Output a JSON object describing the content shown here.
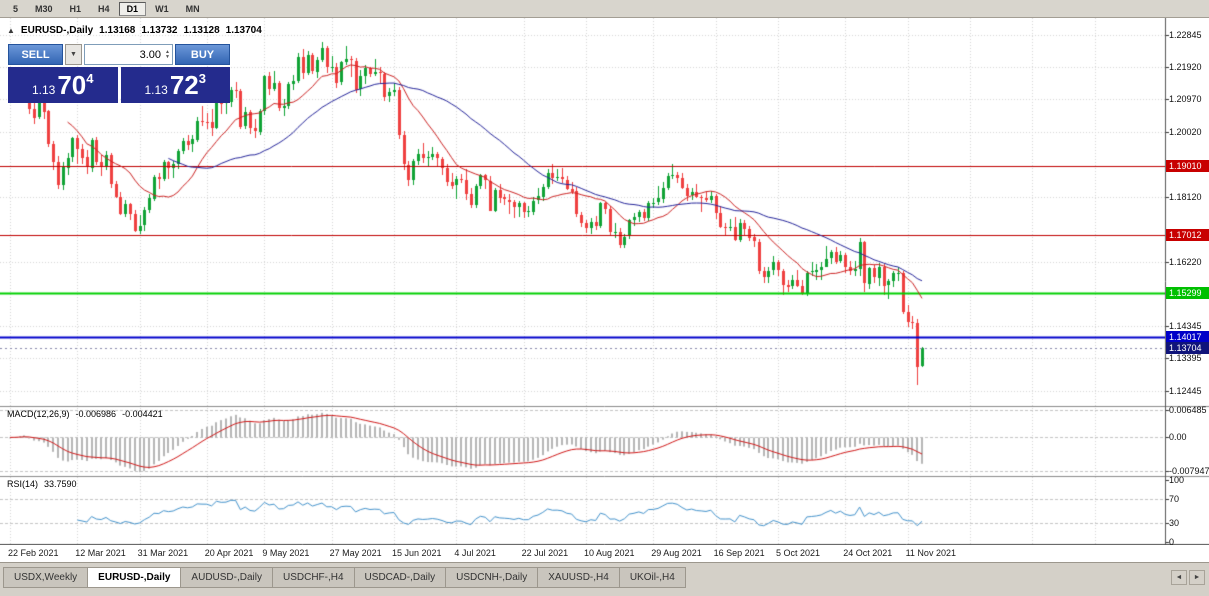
{
  "toolbar": {
    "timeframes": [
      "5",
      "M30",
      "H1",
      "H4",
      "D1",
      "W1",
      "MN"
    ],
    "active": "D1"
  },
  "chart": {
    "symbol": "EURUSD-,Daily",
    "open": "1.13168",
    "high": "1.13732",
    "low": "1.13128",
    "close": "1.13704"
  },
  "trade_panel": {
    "sell_label": "SELL",
    "buy_label": "BUY",
    "lot": "3.00",
    "bid": {
      "prefix": "1.13",
      "pips": "70",
      "frac": "4"
    },
    "ask": {
      "prefix": "1.13",
      "pips": "72",
      "frac": "3"
    }
  },
  "price_axis": {
    "plain_labels": [
      "1.22845",
      "1.21920",
      "1.20970",
      "1.20020",
      "1.18120",
      "1.16220",
      "1.14345",
      "1.13395",
      "1.12445"
    ],
    "tags": [
      {
        "text": "1.19010",
        "bg": "#c80000",
        "current": false
      },
      {
        "text": "1.17012",
        "bg": "#c80000",
        "current": false
      },
      {
        "text": "1.15299",
        "bg": "#00c000",
        "current": false
      },
      {
        "text": "1.14017",
        "bg": "#0000c8",
        "current": false
      },
      {
        "text": "1.13704",
        "bg": "#10147a",
        "current": true
      }
    ]
  },
  "hlines": [
    {
      "price": 1.1901,
      "color": "#c00000",
      "width": 1
    },
    {
      "price": 1.17012,
      "color": "#c00000",
      "width": 1
    },
    {
      "price": 1.15299,
      "color": "#00d000",
      "width": 2
    },
    {
      "price": 1.14017,
      "color": "#0000cc",
      "width": 2
    }
  ],
  "current_price": 1.13704,
  "date_axis": [
    {
      "label": "22 Feb 2021",
      "i": 0
    },
    {
      "label": "12 Mar 2021",
      "i": 14
    },
    {
      "label": "31 Mar 2021",
      "i": 27
    },
    {
      "label": "20 Apr 2021",
      "i": 41
    },
    {
      "label": "9 May 2021",
      "i": 53
    },
    {
      "label": "27 May 2021",
      "i": 67
    },
    {
      "label": "15 Jun 2021",
      "i": 80
    },
    {
      "label": "4 Jul 2021",
      "i": 93
    },
    {
      "label": "22 Jul 2021",
      "i": 107
    },
    {
      "label": "10 Aug 2021",
      "i": 120
    },
    {
      "label": "29 Aug 2021",
      "i": 134
    },
    {
      "label": "16 Sep 2021",
      "i": 147
    },
    {
      "label": "5 Oct 2021",
      "i": 160
    },
    {
      "label": "24 Oct 2021",
      "i": 174
    },
    {
      "label": "11 Nov 2021",
      "i": 187
    }
  ],
  "macd": {
    "name": "MACD(12,26,9)",
    "value_main": "-0.006986",
    "value_signal": "-0.004421",
    "axis_labels": [
      {
        "text": "0.006485",
        "v": 0.006485
      },
      {
        "text": "0.00",
        "v": 0
      },
      {
        "text": "-0.007947",
        "v": -0.007947
      }
    ],
    "colors": {
      "histogram": "#b6b6b6",
      "signal": "#d01616"
    }
  },
  "rsi": {
    "name": "RSI(14)",
    "value": "33.7590",
    "levels": [
      100,
      70,
      30,
      0
    ],
    "dashed_levels": [
      70,
      30
    ],
    "color": "#4493cc"
  },
  "tabs": {
    "items": [
      "USDX,Weekly",
      "EURUSD-,Daily",
      "AUDUSD-,Daily",
      "USDCHF-,H4",
      "USDCAD-,Daily",
      "USDCNH-,Daily",
      "XAUUSD-,H4",
      "UKOil-,H4"
    ],
    "active_index": 1
  },
  "colors": {
    "up": "#10a335",
    "down": "#ef4040",
    "grid": "#d6d6d6"
  },
  "chart_data": {
    "type": "candlestick",
    "symbol": "EURUSD",
    "timeframe": "Daily",
    "title": "EURUSD-,Daily 1.13168 1.13732 1.13128 1.13704",
    "price_scale": {
      "top": 1.2335,
      "bottom": 1.12
    },
    "moving_averages": [
      {
        "period": 13,
        "color": "#cc2222"
      },
      {
        "period": 34,
        "color": "#24249a"
      }
    ],
    "candles": [
      [
        1.2095,
        1.2142,
        1.2085,
        1.2128
      ],
      [
        1.2128,
        1.215,
        1.2108,
        1.214
      ],
      [
        1.214,
        1.2168,
        1.2128,
        1.2155
      ],
      [
        1.2155,
        1.2185,
        1.2145,
        1.216
      ],
      [
        1.216,
        1.217,
        1.2055,
        1.207
      ],
      [
        1.207,
        1.2098,
        1.2025,
        1.2045
      ],
      [
        1.2045,
        1.211,
        1.204,
        1.209
      ],
      [
        1.209,
        1.2096,
        1.204,
        1.2062
      ],
      [
        1.2062,
        1.2067,
        1.1958,
        1.1965
      ],
      [
        1.1965,
        1.1976,
        1.189,
        1.1913
      ],
      [
        1.1913,
        1.193,
        1.1836,
        1.1845
      ],
      [
        1.1845,
        1.1913,
        1.1833,
        1.1898
      ],
      [
        1.1898,
        1.1939,
        1.1875,
        1.1926
      ],
      [
        1.1926,
        1.1988,
        1.1913,
        1.1983
      ],
      [
        1.1983,
        1.1993,
        1.1908,
        1.1952
      ],
      [
        1.1952,
        1.1966,
        1.1909,
        1.1927
      ],
      [
        1.1927,
        1.1949,
        1.188,
        1.1897
      ],
      [
        1.1897,
        1.1984,
        1.1884,
        1.1978
      ],
      [
        1.1978,
        1.1986,
        1.1904,
        1.1915
      ],
      [
        1.1915,
        1.1934,
        1.1872,
        1.1901
      ],
      [
        1.1901,
        1.1945,
        1.189,
        1.1933
      ],
      [
        1.1933,
        1.194,
        1.1839,
        1.1848
      ],
      [
        1.1848,
        1.1857,
        1.1807,
        1.1811
      ],
      [
        1.1811,
        1.1825,
        1.1759,
        1.1762
      ],
      [
        1.1762,
        1.1803,
        1.1753,
        1.1791
      ],
      [
        1.1791,
        1.1795,
        1.1743,
        1.1763
      ],
      [
        1.1763,
        1.1772,
        1.171,
        1.1714
      ],
      [
        1.1714,
        1.1758,
        1.1704,
        1.1728
      ],
      [
        1.1728,
        1.1783,
        1.1711,
        1.1772
      ],
      [
        1.1772,
        1.182,
        1.1766,
        1.1808
      ],
      [
        1.1808,
        1.1876,
        1.18,
        1.1871
      ],
      [
        1.1871,
        1.1883,
        1.1835,
        1.1865
      ],
      [
        1.1865,
        1.1921,
        1.1859,
        1.1914
      ],
      [
        1.1914,
        1.1918,
        1.1864,
        1.1897
      ],
      [
        1.1897,
        1.1917,
        1.1868,
        1.1908
      ],
      [
        1.1908,
        1.1953,
        1.1894,
        1.1946
      ],
      [
        1.1946,
        1.1985,
        1.1938,
        1.1976
      ],
      [
        1.1976,
        1.1992,
        1.195,
        1.1965
      ],
      [
        1.1965,
        1.1994,
        1.1942,
        1.198
      ],
      [
        1.198,
        1.2046,
        1.1972,
        1.2035
      ],
      [
        1.2035,
        1.2078,
        1.2019,
        1.2032
      ],
      [
        1.2032,
        1.2057,
        1.201,
        1.2031
      ],
      [
        1.2031,
        1.2068,
        1.1991,
        1.2013
      ],
      [
        1.2013,
        1.211,
        1.2009,
        1.2096
      ],
      [
        1.2096,
        1.2115,
        1.2054,
        1.2084
      ],
      [
        1.2084,
        1.2102,
        1.2053,
        1.2088
      ],
      [
        1.2088,
        1.2132,
        1.2076,
        1.2123
      ],
      [
        1.2123,
        1.2148,
        1.2101,
        1.2122
      ],
      [
        1.2122,
        1.2126,
        1.2011,
        1.2018
      ],
      [
        1.2018,
        1.2074,
        1.201,
        1.206
      ],
      [
        1.206,
        1.2065,
        1.1997,
        1.2012
      ],
      [
        1.2012,
        1.2041,
        1.1984,
        1.2002
      ],
      [
        1.2002,
        1.207,
        1.1994,
        1.2063
      ],
      [
        1.2063,
        1.2169,
        1.205,
        1.2164
      ],
      [
        1.2164,
        1.2177,
        1.2111,
        1.2127
      ],
      [
        1.2127,
        1.218,
        1.212,
        1.2145
      ],
      [
        1.2145,
        1.2151,
        1.2063,
        1.2072
      ],
      [
        1.2072,
        1.2098,
        1.2049,
        1.2078
      ],
      [
        1.2078,
        1.2147,
        1.2068,
        1.2142
      ],
      [
        1.2142,
        1.2167,
        1.2125,
        1.215
      ],
      [
        1.215,
        1.2232,
        1.2144,
        1.2221
      ],
      [
        1.2221,
        1.2243,
        1.2158,
        1.2173
      ],
      [
        1.2173,
        1.2238,
        1.2168,
        1.2226
      ],
      [
        1.2226,
        1.2232,
        1.217,
        1.2179
      ],
      [
        1.2179,
        1.222,
        1.2159,
        1.2213
      ],
      [
        1.2213,
        1.2266,
        1.2206,
        1.2248
      ],
      [
        1.2248,
        1.2252,
        1.2173,
        1.2191
      ],
      [
        1.2191,
        1.2224,
        1.2178,
        1.2193
      ],
      [
        1.2193,
        1.2203,
        1.213,
        1.2147
      ],
      [
        1.2147,
        1.2208,
        1.214,
        1.2205
      ],
      [
        1.2205,
        1.2253,
        1.2198,
        1.2214
      ],
      [
        1.2214,
        1.2225,
        1.2161,
        1.221
      ],
      [
        1.221,
        1.2217,
        1.2116,
        1.2125
      ],
      [
        1.2125,
        1.2183,
        1.2108,
        1.2164
      ],
      [
        1.2164,
        1.2197,
        1.2143,
        1.2188
      ],
      [
        1.2188,
        1.2193,
        1.2162,
        1.217
      ],
      [
        1.217,
        1.2216,
        1.2164,
        1.2176
      ],
      [
        1.2176,
        1.2193,
        1.2141,
        1.2172
      ],
      [
        1.2172,
        1.2176,
        1.2091,
        1.2106
      ],
      [
        1.2106,
        1.2129,
        1.209,
        1.2118
      ],
      [
        1.2118,
        1.2146,
        1.2107,
        1.2124
      ],
      [
        1.2124,
        1.2132,
        1.1982,
        1.1992
      ],
      [
        1.1992,
        1.2005,
        1.1889,
        1.1906
      ],
      [
        1.1906,
        1.1918,
        1.1845,
        1.1861
      ],
      [
        1.1861,
        1.1922,
        1.1846,
        1.1917
      ],
      [
        1.1917,
        1.1952,
        1.1904,
        1.1937
      ],
      [
        1.1937,
        1.1969,
        1.1911,
        1.1924
      ],
      [
        1.1924,
        1.1945,
        1.19,
        1.1928
      ],
      [
        1.1928,
        1.1957,
        1.1919,
        1.1936
      ],
      [
        1.1936,
        1.1942,
        1.19,
        1.1923
      ],
      [
        1.1923,
        1.1929,
        1.1876,
        1.1896
      ],
      [
        1.1896,
        1.1908,
        1.1843,
        1.1856
      ],
      [
        1.1856,
        1.1882,
        1.1835,
        1.1845
      ],
      [
        1.1845,
        1.1873,
        1.1805,
        1.1863
      ],
      [
        1.1863,
        1.188,
        1.1851,
        1.1861
      ],
      [
        1.1861,
        1.1893,
        1.1804,
        1.1821
      ],
      [
        1.1821,
        1.1837,
        1.1779,
        1.1788
      ],
      [
        1.1788,
        1.185,
        1.178,
        1.1843
      ],
      [
        1.1843,
        1.1879,
        1.1834,
        1.1875
      ],
      [
        1.1875,
        1.1878,
        1.1834,
        1.1859
      ],
      [
        1.1859,
        1.1874,
        1.177,
        1.1772
      ],
      [
        1.1772,
        1.1837,
        1.1768,
        1.1833
      ],
      [
        1.1833,
        1.185,
        1.1794,
        1.181
      ],
      [
        1.181,
        1.182,
        1.1787,
        1.1804
      ],
      [
        1.1804,
        1.1821,
        1.1761,
        1.1797
      ],
      [
        1.1797,
        1.1803,
        1.175,
        1.1781
      ],
      [
        1.1781,
        1.1801,
        1.1753,
        1.1793
      ],
      [
        1.1793,
        1.1797,
        1.1749,
        1.1768
      ],
      [
        1.1768,
        1.1785,
        1.1752,
        1.1769
      ],
      [
        1.1769,
        1.181,
        1.176,
        1.1801
      ],
      [
        1.1801,
        1.1839,
        1.1791,
        1.1814
      ],
      [
        1.1814,
        1.1848,
        1.1801,
        1.1842
      ],
      [
        1.1842,
        1.1892,
        1.1836,
        1.1883
      ],
      [
        1.1883,
        1.1907,
        1.1849,
        1.1868
      ],
      [
        1.1868,
        1.1892,
        1.1857,
        1.1869
      ],
      [
        1.1869,
        1.1897,
        1.1851,
        1.1862
      ],
      [
        1.1862,
        1.1874,
        1.1831,
        1.1836
      ],
      [
        1.1836,
        1.1855,
        1.1819,
        1.1828
      ],
      [
        1.1828,
        1.184,
        1.1752,
        1.176
      ],
      [
        1.176,
        1.1767,
        1.1725,
        1.1736
      ],
      [
        1.1736,
        1.1744,
        1.1707,
        1.172
      ],
      [
        1.172,
        1.1751,
        1.1703,
        1.1737
      ],
      [
        1.1737,
        1.1756,
        1.1716,
        1.1726
      ],
      [
        1.1726,
        1.1797,
        1.1721,
        1.1793
      ],
      [
        1.1793,
        1.1797,
        1.1763,
        1.1775
      ],
      [
        1.1775,
        1.1786,
        1.17,
        1.1708
      ],
      [
        1.1708,
        1.1734,
        1.1692,
        1.171
      ],
      [
        1.171,
        1.172,
        1.1663,
        1.1673
      ],
      [
        1.1673,
        1.1703,
        1.1662,
        1.1695
      ],
      [
        1.1695,
        1.1748,
        1.1689,
        1.1743
      ],
      [
        1.1743,
        1.1764,
        1.1726,
        1.1753
      ],
      [
        1.1753,
        1.1773,
        1.1738,
        1.1768
      ],
      [
        1.1768,
        1.1777,
        1.174,
        1.1749
      ],
      [
        1.1749,
        1.18,
        1.1742,
        1.1794
      ],
      [
        1.1794,
        1.1808,
        1.1779,
        1.1795
      ],
      [
        1.1795,
        1.1843,
        1.1787,
        1.1807
      ],
      [
        1.1807,
        1.1855,
        1.1795,
        1.1838
      ],
      [
        1.1838,
        1.1882,
        1.1832,
        1.1873
      ],
      [
        1.1873,
        1.1909,
        1.1863,
        1.1876
      ],
      [
        1.1876,
        1.1884,
        1.1853,
        1.1867
      ],
      [
        1.1867,
        1.1883,
        1.1835,
        1.1839
      ],
      [
        1.1839,
        1.1849,
        1.18,
        1.1815
      ],
      [
        1.1815,
        1.1839,
        1.1804,
        1.1825
      ],
      [
        1.1825,
        1.185,
        1.1807,
        1.1811
      ],
      [
        1.1811,
        1.1816,
        1.1768,
        1.1808
      ],
      [
        1.1808,
        1.1827,
        1.1797,
        1.1803
      ],
      [
        1.1803,
        1.183,
        1.1793,
        1.1814
      ],
      [
        1.1814,
        1.182,
        1.1748,
        1.1764
      ],
      [
        1.1764,
        1.1786,
        1.1722,
        1.1724
      ],
      [
        1.1724,
        1.1736,
        1.1698,
        1.1723
      ],
      [
        1.1723,
        1.1746,
        1.1713,
        1.1724
      ],
      [
        1.1724,
        1.1754,
        1.1682,
        1.1686
      ],
      [
        1.1686,
        1.1748,
        1.1681,
        1.1736
      ],
      [
        1.1736,
        1.1745,
        1.1699,
        1.1718
      ],
      [
        1.1718,
        1.1728,
        1.1683,
        1.1693
      ],
      [
        1.1693,
        1.1703,
        1.1666,
        1.1681
      ],
      [
        1.1681,
        1.1688,
        1.1587,
        1.1595
      ],
      [
        1.1595,
        1.1608,
        1.1561,
        1.1578
      ],
      [
        1.1578,
        1.1606,
        1.156,
        1.1596
      ],
      [
        1.1596,
        1.1638,
        1.1584,
        1.162
      ],
      [
        1.162,
        1.1627,
        1.1579,
        1.1596
      ],
      [
        1.1596,
        1.16,
        1.1526,
        1.1555
      ],
      [
        1.1555,
        1.157,
        1.1533,
        1.155
      ],
      [
        1.155,
        1.1584,
        1.1542,
        1.1569
      ],
      [
        1.1569,
        1.1597,
        1.1547,
        1.1551
      ],
      [
        1.1551,
        1.1568,
        1.1524,
        1.1528
      ],
      [
        1.1528,
        1.1595,
        1.1523,
        1.159
      ],
      [
        1.159,
        1.1622,
        1.158,
        1.1594
      ],
      [
        1.1594,
        1.1616,
        1.1569,
        1.1599
      ],
      [
        1.1599,
        1.162,
        1.157,
        1.1608
      ],
      [
        1.1608,
        1.1667,
        1.1607,
        1.1631
      ],
      [
        1.1631,
        1.1656,
        1.1615,
        1.165
      ],
      [
        1.165,
        1.1665,
        1.1614,
        1.1622
      ],
      [
        1.1622,
        1.1654,
        1.1618,
        1.1641
      ],
      [
        1.1641,
        1.1648,
        1.1588,
        1.1607
      ],
      [
        1.1607,
        1.1624,
        1.1583,
        1.1595
      ],
      [
        1.1595,
        1.1624,
        1.1581,
        1.1601
      ],
      [
        1.1601,
        1.169,
        1.158,
        1.1679
      ],
      [
        1.1679,
        1.1684,
        1.1533,
        1.1558
      ],
      [
        1.1558,
        1.1607,
        1.1543,
        1.1604
      ],
      [
        1.1604,
        1.1612,
        1.156,
        1.1577
      ],
      [
        1.1577,
        1.1618,
        1.155,
        1.1608
      ],
      [
        1.1608,
        1.1614,
        1.1526,
        1.1552
      ],
      [
        1.1552,
        1.1571,
        1.1512,
        1.1565
      ],
      [
        1.1565,
        1.1596,
        1.1549,
        1.1588
      ],
      [
        1.1588,
        1.1607,
        1.1565,
        1.159
      ],
      [
        1.159,
        1.1594,
        1.1468,
        1.1476
      ],
      [
        1.1476,
        1.1494,
        1.1431,
        1.1446
      ],
      [
        1.1446,
        1.1462,
        1.1424,
        1.1443
      ],
      [
        1.1443,
        1.1454,
        1.1261,
        1.1315
      ],
      [
        1.13168,
        1.13732,
        1.13128,
        1.13704
      ]
    ]
  }
}
